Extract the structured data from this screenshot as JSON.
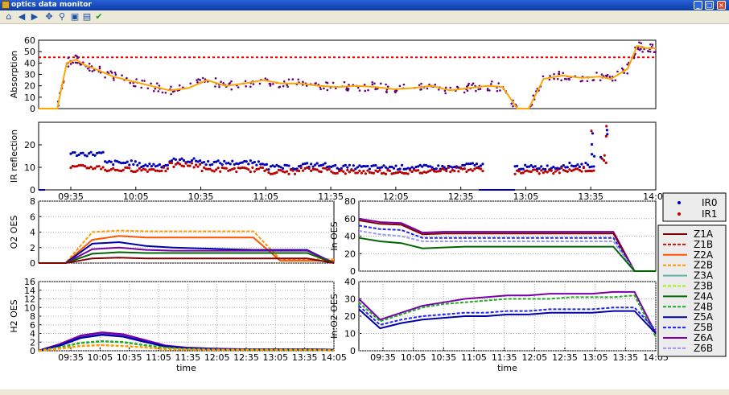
{
  "window": {
    "title": "optics data monitor"
  },
  "toolbar": {
    "icons": [
      "home-icon",
      "back-icon",
      "forward-icon",
      "pan-icon",
      "zoom-icon",
      "subplots-icon",
      "save-icon",
      "check-icon"
    ]
  },
  "colors": {
    "Z1A": "#800000",
    "Z1B": "#cc1111",
    "Z2A": "#ff5500",
    "Z2B": "#ff9900",
    "Z3A": "#5fb3a8",
    "Z3B": "#aaee22",
    "Z4A": "#006600",
    "Z4B": "#22aa22",
    "Z5A": "#0000aa",
    "Z5B": "#2222ee",
    "Z6A": "#7700aa",
    "Z6B": "#9999ee",
    "IR0": "#0000bb",
    "IR1": "#bb0000",
    "absorption_points": "#660077",
    "absorption_fit": "#ffa500",
    "threshold": "#ee0000"
  },
  "chart_data": [
    {
      "id": "absorption",
      "type": "line",
      "ylabel": "Absorption",
      "ylim": [
        0,
        60
      ],
      "yticks": [
        "0",
        "10",
        "20",
        "30",
        "40",
        "50",
        "60"
      ],
      "xlim": [
        0,
        330
      ],
      "threshold": 45,
      "fit_x": [
        0,
        5,
        10,
        15,
        20,
        25,
        30,
        40,
        50,
        60,
        70,
        80,
        90,
        100,
        110,
        120,
        130,
        140,
        150,
        160,
        170,
        180,
        190,
        200,
        210,
        220,
        230,
        240,
        248,
        256,
        262,
        270,
        280,
        290,
        300,
        306,
        315,
        320,
        325,
        330
      ],
      "fit_y": [
        0,
        0,
        0,
        40,
        43,
        38,
        35,
        28,
        24,
        20,
        16,
        18,
        25,
        20,
        22,
        25,
        22,
        22,
        20,
        19,
        20,
        19,
        17,
        18,
        20,
        16,
        18,
        20,
        19,
        0,
        0,
        26,
        29,
        27,
        28,
        26,
        35,
        55,
        53,
        53
      ]
    },
    {
      "id": "ir",
      "type": "scatter",
      "ylabel": "IR reflection",
      "ylim": [
        0,
        30
      ],
      "yticks": [
        "0",
        "10",
        "20"
      ],
      "xticks": [
        "09:35",
        "10:05",
        "10:35",
        "11:05",
        "11:35",
        "12:05",
        "12:35",
        "13:05",
        "13:35",
        "14:05"
      ],
      "legend": [
        "IR0",
        "IR1"
      ]
    },
    {
      "id": "o2",
      "type": "line",
      "ylabel": "O2 OES",
      "ylim": [
        0,
        8
      ],
      "yticks": [
        "0",
        "2",
        "4",
        "6",
        "8"
      ],
      "grid": true,
      "series": [
        {
          "name": "Z2B",
          "values": [
            0,
            0,
            4,
            4.2,
            4.1,
            4.1,
            4.1,
            4.1,
            4.1,
            0.5,
            0.5,
            0.5
          ]
        },
        {
          "name": "Z2A",
          "values": [
            0,
            0,
            3,
            3.5,
            3.3,
            3.3,
            3.3,
            3.3,
            3.3,
            0.3,
            0.3,
            0.3
          ]
        },
        {
          "name": "Z5A",
          "values": [
            0,
            0,
            2.5,
            2.7,
            2.2,
            2.0,
            1.9,
            1.8,
            1.7,
            1.7,
            1.7,
            0
          ]
        },
        {
          "name": "Z6A",
          "values": [
            0,
            0,
            1.8,
            2.0,
            1.7,
            1.6,
            1.6,
            1.6,
            1.6,
            1.6,
            1.6,
            0
          ]
        },
        {
          "name": "Z4A",
          "values": [
            0,
            0,
            1.2,
            1.4,
            1.3,
            1.3,
            1.3,
            1.3,
            1.3,
            1.3,
            1.3,
            0
          ]
        },
        {
          "name": "Z1A",
          "values": [
            0,
            0,
            0.6,
            0.7,
            0.6,
            0.6,
            0.6,
            0.6,
            0.6,
            0.6,
            0.6,
            0
          ]
        }
      ]
    },
    {
      "id": "in",
      "type": "line",
      "ylabel": "In OES",
      "ylim": [
        0,
        80
      ],
      "yticks": [
        "0",
        "20",
        "40",
        "60",
        "80"
      ],
      "grid": true,
      "series": [
        {
          "name": "Z6A",
          "values": [
            60,
            56,
            55,
            44,
            45,
            45,
            45,
            45,
            45,
            45,
            45,
            45,
            45,
            0,
            0
          ]
        },
        {
          "name": "Z1A",
          "values": [
            58,
            54,
            53,
            42,
            43,
            43,
            43,
            43,
            43,
            43,
            43,
            43,
            43,
            0,
            0
          ]
        },
        {
          "name": "Z5B",
          "values": [
            52,
            48,
            47,
            38,
            38,
            38,
            38,
            38,
            38,
            38,
            38,
            38,
            38,
            0,
            0
          ]
        },
        {
          "name": "Z6B",
          "values": [
            46,
            42,
            40,
            34,
            34,
            34,
            34,
            34,
            34,
            34,
            34,
            34,
            34,
            0,
            0
          ]
        },
        {
          "name": "Z4A",
          "values": [
            38,
            34,
            32,
            26,
            27,
            28,
            28,
            28,
            28,
            28,
            28,
            28,
            28,
            0,
            0
          ]
        }
      ]
    },
    {
      "id": "h2",
      "type": "line",
      "ylabel": "H2 OES",
      "xlabel": "time",
      "ylim": [
        0,
        16
      ],
      "yticks": [
        "0",
        "2",
        "4",
        "6",
        "8",
        "10",
        "12",
        "14",
        "16"
      ],
      "grid": true,
      "xticks": [
        "09:35",
        "10:05",
        "10:35",
        "11:05",
        "11:35",
        "12:05",
        "12:35",
        "13:05",
        "13:35",
        "14:05"
      ],
      "series": [
        {
          "name": "Z6A",
          "values": [
            0,
            1.5,
            3.5,
            4.2,
            3.8,
            2.5,
            1.2,
            0.7,
            0.5,
            0.4,
            0.3,
            0.3,
            0.3,
            0.3,
            0.2
          ]
        },
        {
          "name": "Z5A",
          "values": [
            0,
            1.2,
            3.0,
            3.7,
            3.3,
            2.1,
            1.0,
            0.6,
            0.4,
            0.3,
            0.3,
            0.3,
            0.3,
            0.3,
            0.2
          ]
        },
        {
          "name": "Z4B",
          "values": [
            0,
            0.8,
            1.8,
            2.2,
            2.0,
            1.3,
            0.7,
            0.4,
            0.3,
            0.2,
            0.2,
            0.2,
            0.2,
            0.2,
            0.1
          ]
        },
        {
          "name": "Z2B",
          "values": [
            0,
            0.5,
            1.1,
            1.3,
            1.1,
            0.8,
            0.4,
            0.3,
            0.2,
            0.2,
            0.2,
            0.2,
            0.2,
            0.2,
            0.1
          ]
        }
      ]
    },
    {
      "id": "ino2",
      "type": "line",
      "ylabel": "In:O2 OES",
      "xlabel": "time",
      "ylim": [
        0,
        40
      ],
      "yticks": [
        "0",
        "10",
        "20",
        "30",
        "40"
      ],
      "grid": true,
      "xticks": [
        "09:35",
        "10:05",
        "10:35",
        "11:05",
        "11:35",
        "12:05",
        "12:35",
        "13:05",
        "13:35",
        "14:05"
      ],
      "legend": [
        "Z1A",
        "Z1B",
        "Z2A",
        "Z2B",
        "Z3A",
        "Z3B",
        "Z4A",
        "Z4B",
        "Z5A",
        "Z5B",
        "Z6A",
        "Z6B"
      ],
      "series": [
        {
          "name": "Z6A",
          "values": [
            30,
            18,
            22,
            26,
            28,
            30,
            31,
            32,
            32,
            33,
            33,
            33,
            34,
            34,
            10
          ]
        },
        {
          "name": "Z4B",
          "values": [
            28,
            17,
            21,
            25,
            27,
            28,
            29,
            30,
            30,
            30,
            31,
            31,
            31,
            32,
            8
          ]
        },
        {
          "name": "Z5B",
          "values": [
            26,
            15,
            18,
            20,
            21,
            22,
            22,
            23,
            23,
            24,
            24,
            24,
            25,
            25,
            12
          ]
        },
        {
          "name": "Z5A",
          "values": [
            24,
            13,
            16,
            18,
            19,
            20,
            20,
            21,
            21,
            22,
            22,
            22,
            23,
            23,
            10
          ]
        }
      ]
    }
  ]
}
